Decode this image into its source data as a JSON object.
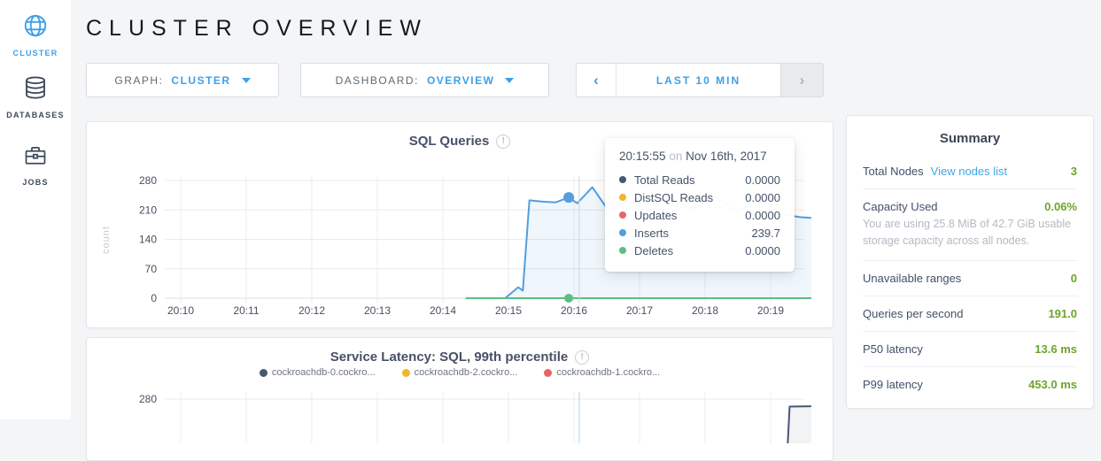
{
  "colors": {
    "accent_blue": "#3da0e8",
    "value_green": "#6fa42b",
    "navy": "#475872",
    "yellow": "#efb72b",
    "red": "#e96565",
    "chart_blue": "#539ede",
    "chart_green": "#5cbe85"
  },
  "sidebar": {
    "items": [
      {
        "label": "CLUSTER",
        "icon": "globe-icon",
        "active": true
      },
      {
        "label": "DATABASES",
        "icon": "databases-icon",
        "active": false
      },
      {
        "label": "JOBS",
        "icon": "briefcase-icon",
        "active": false
      }
    ]
  },
  "header": {
    "title": "CLUSTER OVERVIEW"
  },
  "controls": {
    "graph": {
      "label": "GRAPH:",
      "value": "CLUSTER"
    },
    "dashboard": {
      "label": "DASHBOARD:",
      "value": "OVERVIEW"
    },
    "time_range": {
      "prev_icon": "‹",
      "label": "LAST 10 MIN",
      "next_icon": "›"
    }
  },
  "tooltip": {
    "time": "20:15:55",
    "connector": "on",
    "date": "Nov 16th, 2017",
    "rows": [
      {
        "label": "Total Reads",
        "value": "0.0000",
        "color": "#475872"
      },
      {
        "label": "DistSQL Reads",
        "value": "0.0000",
        "color": "#efb72b"
      },
      {
        "label": "Updates",
        "value": "0.0000",
        "color": "#e96565"
      },
      {
        "label": "Inserts",
        "value": "239.7",
        "color": "#539ede"
      },
      {
        "label": "Deletes",
        "value": "0.0000",
        "color": "#5cbe85"
      }
    ]
  },
  "summary": {
    "title": "Summary",
    "total_nodes": {
      "label": "Total Nodes",
      "link": "View nodes list",
      "value": "3"
    },
    "capacity": {
      "label": "Capacity Used",
      "value": "0.06%",
      "description": "You are using 25.8 MiB of 42.7 GiB usable storage capacity across all nodes."
    },
    "unavailable_ranges": {
      "label": "Unavailable ranges",
      "value": "0"
    },
    "qps": {
      "label": "Queries per second",
      "value": "191.0"
    },
    "p50": {
      "label": "P50 latency",
      "value": "13.6 ms"
    },
    "p99": {
      "label": "P99 latency",
      "value": "453.0 ms"
    }
  },
  "chart_data": [
    {
      "type": "area",
      "title": "SQL Queries",
      "ylabel": "count",
      "ylim": [
        0,
        280
      ],
      "yticks": [
        280,
        210,
        140,
        70,
        0
      ],
      "xticks": [
        "20:10",
        "20:11",
        "20:12",
        "20:13",
        "20:14",
        "20:15",
        "20:16",
        "20:17",
        "20:18",
        "20:19"
      ],
      "grid": true,
      "hover_t": 6.08,
      "series": [
        {
          "name": "Total Reads",
          "color": "#475872",
          "cursor_value": 0.0,
          "area": false,
          "points": [
            [
              4.35,
              0
            ],
            [
              9.62,
              0
            ]
          ]
        },
        {
          "name": "DistSQL Reads",
          "color": "#efb72b",
          "cursor_value": 0.0,
          "area": false,
          "points": [
            [
              4.35,
              0
            ],
            [
              9.62,
              0
            ]
          ]
        },
        {
          "name": "Updates",
          "color": "#e96565",
          "cursor_value": 0.0,
          "area": false,
          "points": [
            [
              4.35,
              0
            ],
            [
              9.62,
              0
            ]
          ]
        },
        {
          "name": "Inserts",
          "color": "#539ede",
          "cursor_value": 239.7,
          "area": true,
          "points": [
            [
              4.95,
              0
            ],
            [
              5.15,
              26
            ],
            [
              5.22,
              18
            ],
            [
              5.32,
              233
            ],
            [
              5.5,
              230
            ],
            [
              5.72,
              228
            ],
            [
              5.92,
              239.7
            ],
            [
              6.05,
              226
            ],
            [
              6.28,
              264
            ],
            [
              6.52,
              210
            ],
            [
              6.82,
              232
            ],
            [
              7.12,
              206
            ],
            [
              7.45,
              240
            ],
            [
              7.8,
              212
            ],
            [
              8.15,
              242
            ],
            [
              8.5,
              206
            ],
            [
              8.85,
              238
            ],
            [
              9.15,
              200
            ],
            [
              9.45,
              193
            ],
            [
              9.62,
              191
            ]
          ]
        },
        {
          "name": "Deletes",
          "color": "#5cbe85",
          "cursor_value": 0.0,
          "area": false,
          "points": [
            [
              4.35,
              0
            ],
            [
              9.62,
              0
            ]
          ]
        }
      ],
      "dots": [
        {
          "series": "Inserts",
          "t": 5.92,
          "value": 239.7,
          "color": "#539ede",
          "r": 6
        },
        {
          "series": "Deletes",
          "t": 5.92,
          "value": 0,
          "color": "#5cbe85",
          "r": 5
        }
      ]
    },
    {
      "type": "line",
      "title": "Service Latency: SQL, 99th percentile",
      "ylim": [
        0,
        280
      ],
      "yticks": [
        280
      ],
      "grid": true,
      "legend_position": "top",
      "hover_t": 6.08,
      "series": [
        {
          "name": "cockroachdb-0.cockro...",
          "color": "#475872",
          "area": true,
          "points": [
            [
              9.26,
              170
            ],
            [
              9.29,
              262
            ],
            [
              9.62,
              263
            ]
          ]
        },
        {
          "name": "cockroachdb-2.cockro...",
          "color": "#efb72b",
          "area": false,
          "points": []
        },
        {
          "name": "cockroachdb-1.cockro...",
          "color": "#e96565",
          "area": false,
          "points": []
        }
      ]
    }
  ]
}
